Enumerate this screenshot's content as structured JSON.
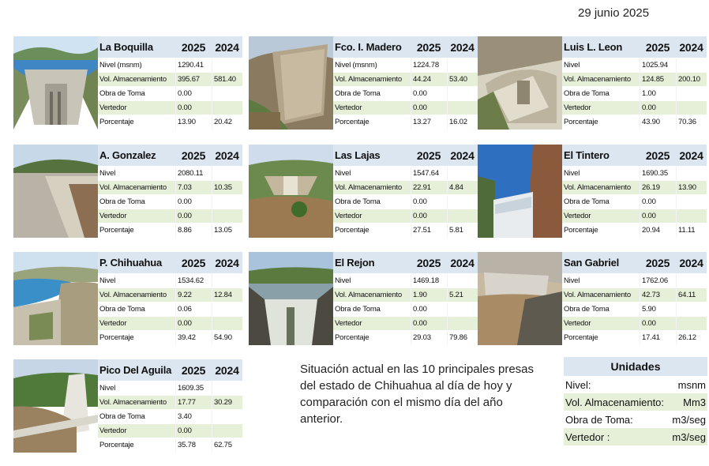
{
  "date": "29 junio 2025",
  "year_current": "2025",
  "year_previous": "2024",
  "dams": [
    {
      "name": "La Boquilla",
      "rows": [
        {
          "label": "Nivel (msnm)",
          "v2025": "1290.41",
          "v2024": ""
        },
        {
          "label": "Vol. Almacenamiento",
          "v2025": "395.67",
          "v2024": "581.40"
        },
        {
          "label": "Obra de Toma",
          "v2025": "0.00",
          "v2024": ""
        },
        {
          "label": "Vertedor",
          "v2025": "0.00",
          "v2024": ""
        },
        {
          "label": "Porcentaje",
          "v2025": "13.90",
          "v2024": "20.42"
        }
      ]
    },
    {
      "name": "Fco. I. Madero",
      "rows": [
        {
          "label": "Nivel (msnm)",
          "v2025": "1224.78",
          "v2024": ""
        },
        {
          "label": "Vol. Almacenamiento",
          "v2025": "44.24",
          "v2024": "53.40"
        },
        {
          "label": "Obra de Toma",
          "v2025": "0.00",
          "v2024": ""
        },
        {
          "label": "Vertedor",
          "v2025": "0.00",
          "v2024": ""
        },
        {
          "label": "Porcentaje",
          "v2025": "13.27",
          "v2024": "16.02"
        }
      ]
    },
    {
      "name": "Luis L. Leon",
      "rows": [
        {
          "label": "Nivel",
          "v2025": "1025.94",
          "v2024": ""
        },
        {
          "label": "Vol. Almacenamiento",
          "v2025": "124.85",
          "v2024": "200.10"
        },
        {
          "label": "Obra de Toma",
          "v2025": "1.00",
          "v2024": ""
        },
        {
          "label": "Vertedor",
          "v2025": "0.00",
          "v2024": ""
        },
        {
          "label": "Porcentaje",
          "v2025": "43.90",
          "v2024": "70.36"
        }
      ]
    },
    {
      "name": "A. Gonzalez",
      "rows": [
        {
          "label": "Nivel",
          "v2025": "2080.11",
          "v2024": ""
        },
        {
          "label": "Vol. Almacenamiento",
          "v2025": "7.03",
          "v2024": "10.35"
        },
        {
          "label": "Obra de Toma",
          "v2025": "0.00",
          "v2024": ""
        },
        {
          "label": "Vertedor",
          "v2025": "0.00",
          "v2024": ""
        },
        {
          "label": "Porcentaje",
          "v2025": "8.86",
          "v2024": "13.05"
        }
      ]
    },
    {
      "name": "Las Lajas",
      "rows": [
        {
          "label": "Nivel",
          "v2025": "1547.64",
          "v2024": ""
        },
        {
          "label": "Vol. Almacenamiento",
          "v2025": "22.91",
          "v2024": "4.84"
        },
        {
          "label": "Obra de Toma",
          "v2025": "0.00",
          "v2024": ""
        },
        {
          "label": "Vertedor",
          "v2025": "0.00",
          "v2024": ""
        },
        {
          "label": "Porcentaje",
          "v2025": "27.51",
          "v2024": "5.81"
        }
      ]
    },
    {
      "name": "El Tintero",
      "rows": [
        {
          "label": "Nivel",
          "v2025": "1690.35",
          "v2024": ""
        },
        {
          "label": "Vol. Almacenamiento",
          "v2025": "26.19",
          "v2024": "13.90"
        },
        {
          "label": "Obra de Toma",
          "v2025": "0.00",
          "v2024": ""
        },
        {
          "label": "Vertedor",
          "v2025": "0.00",
          "v2024": ""
        },
        {
          "label": "Porcentaje",
          "v2025": "20.94",
          "v2024": "11.11"
        }
      ]
    },
    {
      "name": "P. Chihuahua",
      "rows": [
        {
          "label": "Nivel",
          "v2025": "1534.62",
          "v2024": ""
        },
        {
          "label": "Vol. Almacenamiento",
          "v2025": "9.22",
          "v2024": "12.84"
        },
        {
          "label": "Obra de Toma",
          "v2025": "0.06",
          "v2024": ""
        },
        {
          "label": "Vertedor",
          "v2025": "0.00",
          "v2024": ""
        },
        {
          "label": "Porcentaje",
          "v2025": "39.42",
          "v2024": "54.90"
        }
      ]
    },
    {
      "name": "El Rejon",
      "rows": [
        {
          "label": "Nivel",
          "v2025": "1469.18",
          "v2024": ""
        },
        {
          "label": "Vol. Almacenamiento",
          "v2025": "1.90",
          "v2024": "5.21"
        },
        {
          "label": "Obra de Toma",
          "v2025": "0.00",
          "v2024": ""
        },
        {
          "label": "Vertedor",
          "v2025": "0.00",
          "v2024": ""
        },
        {
          "label": "Porcentaje",
          "v2025": "29.03",
          "v2024": "79.86"
        }
      ]
    },
    {
      "name": "San Gabriel",
      "rows": [
        {
          "label": "Nivel",
          "v2025": "1762.06",
          "v2024": ""
        },
        {
          "label": "Vol. Almacenamiento",
          "v2025": "42.73",
          "v2024": "64.11"
        },
        {
          "label": "Obra de Toma",
          "v2025": "5.90",
          "v2024": ""
        },
        {
          "label": "Vertedor",
          "v2025": "0.00",
          "v2024": ""
        },
        {
          "label": "Porcentaje",
          "v2025": "17.41",
          "v2024": "26.12"
        }
      ]
    },
    {
      "name": "Pico Del Aguila",
      "rows": [
        {
          "label": "Nivel",
          "v2025": "1609.35",
          "v2024": ""
        },
        {
          "label": "Vol. Almacenamiento",
          "v2025": "17.77",
          "v2024": "30.29"
        },
        {
          "label": "Obra de Toma",
          "v2025": "3.40",
          "v2024": ""
        },
        {
          "label": "Vertedor",
          "v2025": "0.00",
          "v2024": ""
        },
        {
          "label": "Porcentaje",
          "v2025": "35.78",
          "v2024": "62.75"
        }
      ]
    }
  ],
  "description": "Situación actual en las 10 principales presas del estado de Chihuahua al día de hoy y comparación con el mismo día del año anterior.",
  "units": {
    "title": "Unidades",
    "rows": [
      {
        "label": "Nivel:",
        "unit": "msnm"
      },
      {
        "label": "Vol. Almacenamiento:",
        "unit": "Mm3"
      },
      {
        "label": "Obra de Toma:",
        "unit": "m3/seg"
      },
      {
        "label": "Vertedor :",
        "unit": "m3/seg"
      }
    ]
  },
  "colors": {
    "header_bg": "#dbe6f1",
    "alt_row_bg": "#e6efd8"
  }
}
